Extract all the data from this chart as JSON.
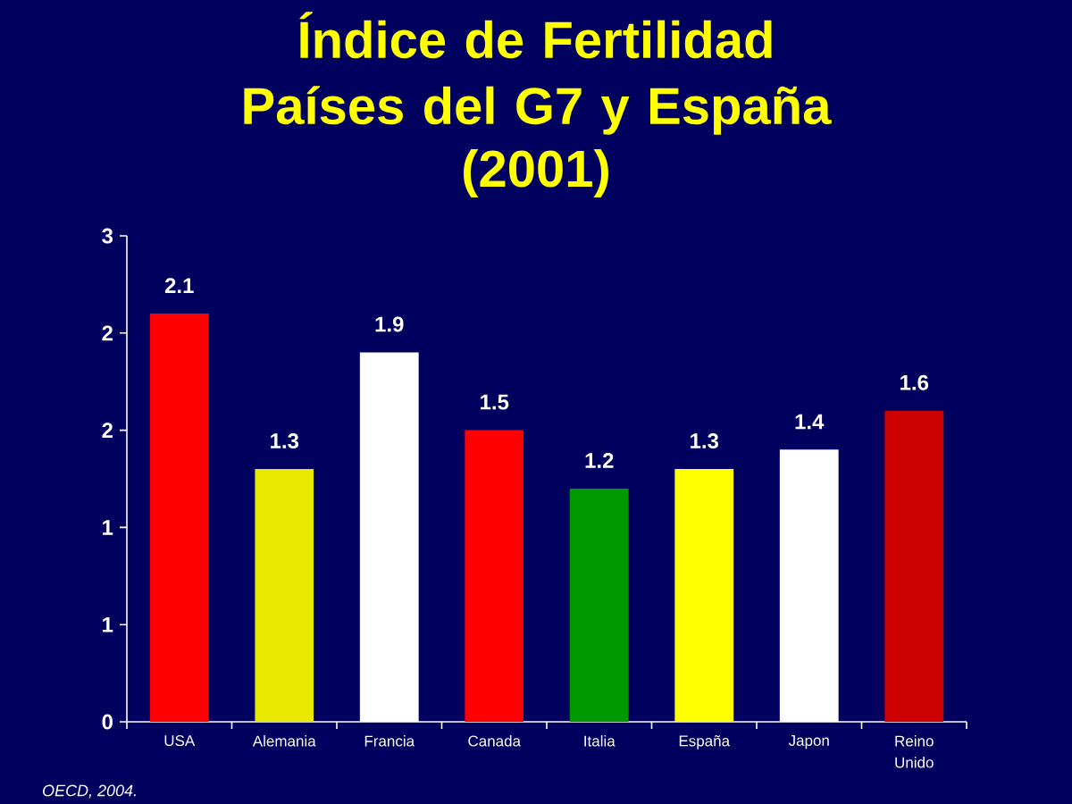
{
  "chart_data": {
    "type": "bar",
    "title": "Índice de Fertilidad Países del G7 y España",
    "subtitle": "(2001)",
    "categories": [
      "USA",
      "Alemania",
      "Francia",
      "Canada",
      "Italia",
      "España",
      "Japon",
      "Reino Unido"
    ],
    "values": [
      2.1,
      1.3,
      1.9,
      1.5,
      1.2,
      1.3,
      1.4,
      1.6
    ],
    "colors": [
      "#ff0000",
      "#e8e800",
      "#ffffff",
      "#ff0000",
      "#009900",
      "#ffff00",
      "#ffffff",
      "#cc0000"
    ],
    "ylim": [
      0,
      2.5
    ],
    "yticks": [
      0,
      {
        "value": 0.5,
        "label": "1"
      },
      1,
      {
        "value": 1.5,
        "label": "2"
      },
      2,
      {
        "value": 2.5,
        "label": "3"
      }
    ],
    "data_labels": true,
    "annotations": [
      "OECD, 2004."
    ]
  }
}
